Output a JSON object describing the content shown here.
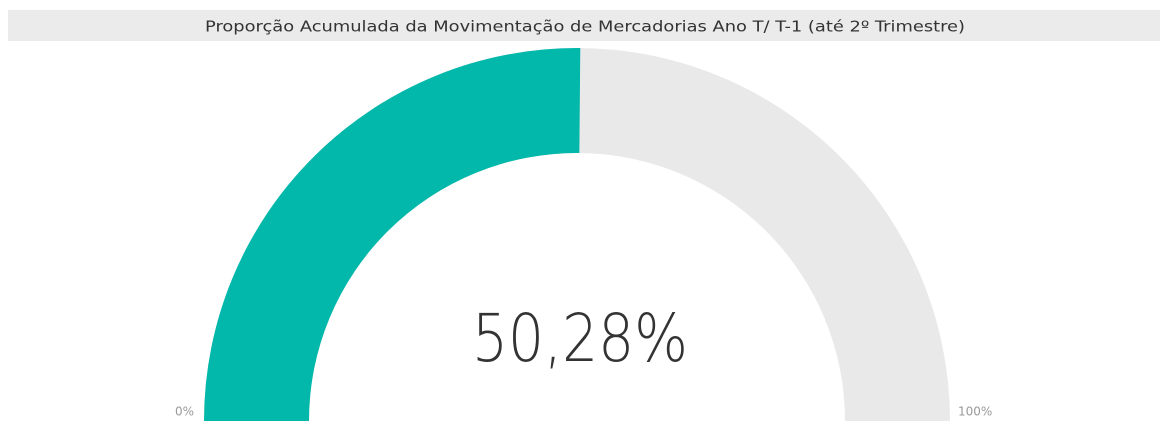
{
  "chart_data": {
    "type": "gauge",
    "title": "Proporção Acumulada da Movimentação de Mercadorias Ano T/ T-1 (até 2º Trimestre)",
    "values": [
      50.28
    ],
    "value_labels": [
      "50,28%"
    ],
    "ylim": [
      0,
      100
    ],
    "yticks": [
      {
        "value": 0,
        "label": "0%"
      },
      {
        "value": 100,
        "label": "100%"
      }
    ],
    "color": "#01b8aa",
    "track_color": "#e9e9e9"
  }
}
